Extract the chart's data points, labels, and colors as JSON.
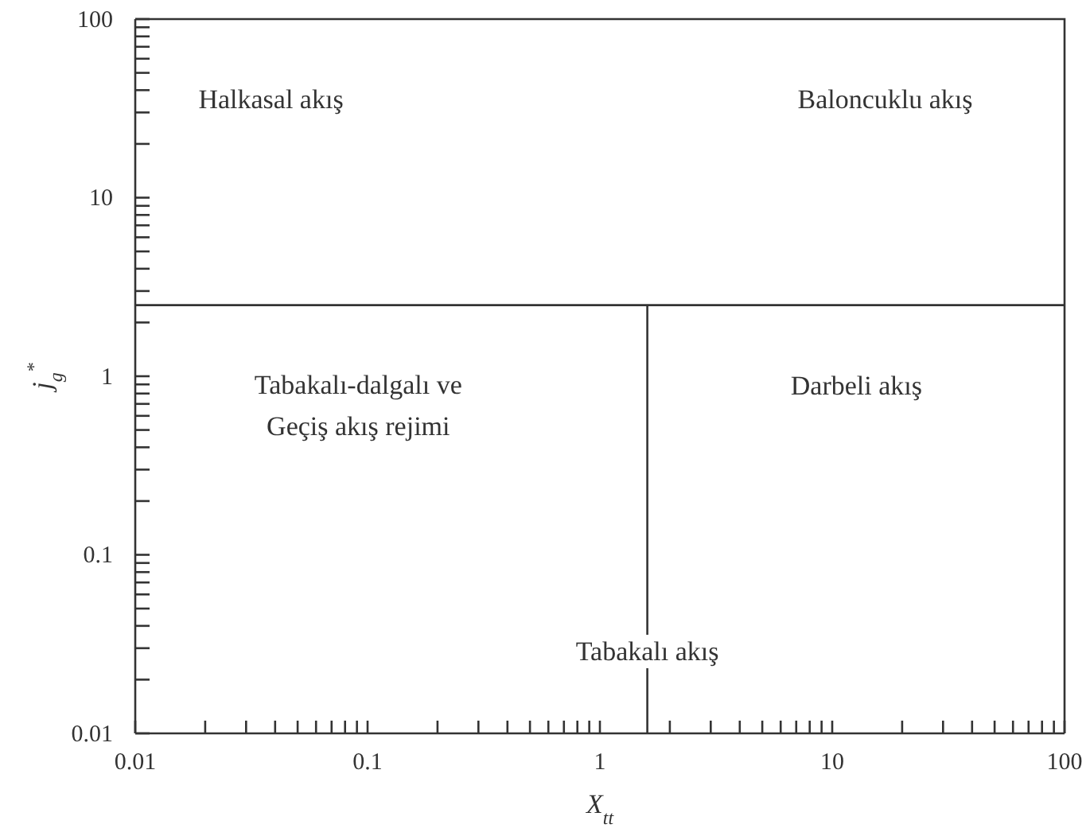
{
  "chart_data": {
    "type": "line",
    "xlabel": "X$_{tt}$",
    "ylabel": "j$_{g}$$^{*}$",
    "log": "xy",
    "xlim": [
      0.01,
      100
    ],
    "ylim": [
      0.01,
      100
    ],
    "xticks": [
      0.01,
      {
        "value": 0.02,
        "label": null
      },
      {
        "value": 0.03,
        "label": null
      },
      {
        "value": 0.04,
        "label": null
      },
      {
        "value": 0.05,
        "label": null
      },
      {
        "value": 0.06,
        "label": null
      },
      {
        "value": 0.07,
        "label": null
      },
      {
        "value": 0.08,
        "label": null
      },
      {
        "value": 0.09,
        "label": null
      },
      0.1,
      {
        "value": 0.2,
        "label": null
      },
      {
        "value": 0.3,
        "label": null
      },
      {
        "value": 0.4,
        "label": null
      },
      {
        "value": 0.5,
        "label": null
      },
      {
        "value": 0.6,
        "label": null
      },
      {
        "value": 0.7,
        "label": null
      },
      {
        "value": 0.8,
        "label": null
      },
      {
        "value": 0.9,
        "label": null
      },
      1,
      {
        "value": 2,
        "label": null
      },
      {
        "value": 3,
        "label": null
      },
      {
        "value": 4,
        "label": null
      },
      {
        "value": 5,
        "label": null
      },
      {
        "value": 6,
        "label": null
      },
      {
        "value": 7,
        "label": null
      },
      {
        "value": 8,
        "label": null
      },
      {
        "value": 9,
        "label": null
      },
      10,
      {
        "value": 20,
        "label": null
      },
      {
        "value": 30,
        "label": null
      },
      {
        "value": 40,
        "label": null
      },
      {
        "value": 50,
        "label": null
      },
      {
        "value": 60,
        "label": null
      },
      {
        "value": 70,
        "label": null
      },
      {
        "value": 80,
        "label": null
      },
      {
        "value": 90,
        "label": null
      },
      100
    ],
    "yticks": [
      0.01,
      {
        "value": 0.02,
        "label": null
      },
      {
        "value": 0.03,
        "label": null
      },
      {
        "value": 0.04,
        "label": null
      },
      {
        "value": 0.05,
        "label": null
      },
      {
        "value": 0.06,
        "label": null
      },
      {
        "value": 0.07,
        "label": null
      },
      {
        "value": 0.08,
        "label": null
      },
      {
        "value": 0.09,
        "label": null
      },
      0.1,
      {
        "value": 0.2,
        "label": null
      },
      {
        "value": 0.3,
        "label": null
      },
      {
        "value": 0.4,
        "label": null
      },
      {
        "value": 0.5,
        "label": null
      },
      {
        "value": 0.6,
        "label": null
      },
      {
        "value": 0.7,
        "label": null
      },
      {
        "value": 0.8,
        "label": null
      },
      {
        "value": 0.9,
        "label": null
      },
      1,
      {
        "value": 2,
        "label": null
      },
      {
        "value": 3,
        "label": null
      },
      {
        "value": 4,
        "label": null
      },
      {
        "value": 5,
        "label": null
      },
      {
        "value": 6,
        "label": null
      },
      {
        "value": 7,
        "label": null
      },
      {
        "value": 8,
        "label": null
      },
      {
        "value": 9,
        "label": null
      },
      10,
      {
        "value": 20,
        "label": null
      },
      {
        "value": 30,
        "label": null
      },
      {
        "value": 40,
        "label": null
      },
      {
        "value": 50,
        "label": null
      },
      {
        "value": 60,
        "label": null
      },
      {
        "value": 70,
        "label": null
      },
      {
        "value": 80,
        "label": null
      },
      {
        "value": 90,
        "label": null
      },
      100
    ],
    "series": [
      {
        "color": "#333333",
        "x": [
          1.6,
          1.6
        ],
        "values": [
          0.01,
          2.5
        ]
      }
    ],
    "ref_lines": [
      {
        "axis": "y",
        "value": 2.5,
        "color": "#333333"
      }
    ],
    "annotations": [
      "Halkasal akış",
      "Baloncuklu akış",
      "Tabakalı-dalgalı ve\nGeçiş akış rejimi",
      "Darbeli akış",
      {
        "text": "Tabakalı akış",
        "x": 1.6,
        "y": 0.029
      }
    ]
  }
}
